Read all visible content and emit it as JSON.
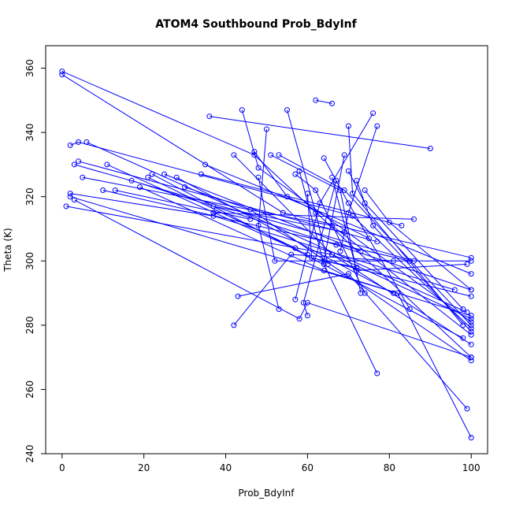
{
  "chart_data": {
    "type": "line",
    "title": "ATOM4 Southbound Prob_BdyInf",
    "xlabel": "Prob_BdyInf",
    "ylabel": "Theta (K)",
    "xlim": [
      -4,
      104
    ],
    "ylim": [
      240,
      367
    ],
    "xticks": [
      0,
      20,
      40,
      60,
      80,
      100
    ],
    "yticks": [
      240,
      260,
      280,
      300,
      320,
      340,
      360
    ],
    "grid": false,
    "legend": "none",
    "series_color": "#0000ff",
    "marker": "open-circle",
    "note": "",
    "series": [
      {
        "points": [
          [
            0,
            358
          ],
          [
            54,
            315
          ],
          [
            100,
            301
          ]
        ]
      },
      {
        "points": [
          [
            0,
            359
          ],
          [
            47,
            333
          ],
          [
            100,
            270
          ]
        ]
      },
      {
        "points": [
          [
            2,
            336
          ],
          [
            4,
            337
          ],
          [
            71,
            314
          ],
          [
            100,
            279
          ]
        ]
      },
      {
        "points": [
          [
            3,
            330
          ],
          [
            86,
            300
          ]
        ]
      },
      {
        "points": [
          [
            4,
            331
          ],
          [
            77,
            306
          ]
        ]
      },
      {
        "points": [
          [
            6,
            337
          ],
          [
            99,
            284
          ]
        ]
      },
      {
        "points": [
          [
            2,
            321
          ],
          [
            37,
            314
          ],
          [
            96,
            291
          ]
        ]
      },
      {
        "points": [
          [
            1,
            317
          ],
          [
            66,
            302
          ],
          [
            100,
            274
          ]
        ]
      },
      {
        "points": [
          [
            3,
            319
          ],
          [
            58,
            282
          ],
          [
            60,
            287
          ],
          [
            100,
            270
          ]
        ]
      },
      {
        "points": [
          [
            5,
            326
          ],
          [
            66,
            311
          ],
          [
            100,
            277
          ]
        ]
      },
      {
        "points": [
          [
            2,
            320
          ],
          [
            82,
            290
          ],
          [
            100,
            245
          ]
        ]
      },
      {
        "points": [
          [
            10,
            322
          ],
          [
            85,
            300
          ]
        ]
      },
      {
        "points": [
          [
            11,
            330
          ],
          [
            60,
            302
          ]
        ]
      },
      {
        "points": [
          [
            13,
            322
          ],
          [
            46,
            313
          ]
        ]
      },
      {
        "points": [
          [
            17,
            325
          ],
          [
            67,
            305
          ],
          [
            100,
            291
          ]
        ]
      },
      {
        "points": [
          [
            19,
            323
          ],
          [
            64,
            297
          ],
          [
            100,
            283
          ]
        ]
      },
      {
        "points": [
          [
            21,
            326
          ],
          [
            57,
            304
          ]
        ]
      },
      {
        "points": [
          [
            22,
            327
          ],
          [
            98,
            276
          ]
        ]
      },
      {
        "points": [
          [
            25,
            327
          ],
          [
            73,
            303
          ]
        ]
      },
      {
        "points": [
          [
            28,
            326
          ],
          [
            81,
            290
          ]
        ]
      },
      {
        "points": [
          [
            30,
            323
          ],
          [
            46,
            316
          ],
          [
            100,
            269
          ]
        ]
      },
      {
        "points": [
          [
            34,
            327
          ],
          [
            83,
            311
          ]
        ]
      },
      {
        "points": [
          [
            35,
            330
          ],
          [
            100,
            296
          ]
        ]
      },
      {
        "points": [
          [
            36,
            345
          ],
          [
            90,
            335
          ]
        ]
      },
      {
        "points": [
          [
            37,
            317
          ],
          [
            69,
            309
          ]
        ]
      },
      {
        "points": [
          [
            37,
            315
          ],
          [
            86,
            313
          ]
        ]
      },
      {
        "points": [
          [
            42,
            333
          ],
          [
            66,
            302
          ],
          [
            100,
            282
          ]
        ]
      },
      {
        "points": [
          [
            42,
            280
          ],
          [
            56,
            302
          ],
          [
            81,
            300
          ]
        ]
      },
      {
        "points": [
          [
            43,
            289
          ],
          [
            70,
            296
          ],
          [
            99,
            254
          ]
        ]
      },
      {
        "points": [
          [
            44,
            347
          ],
          [
            48,
            329
          ],
          [
            100,
            281
          ]
        ]
      },
      {
        "points": [
          [
            47,
            334
          ],
          [
            55,
            320
          ],
          [
            75,
            307
          ]
        ]
      },
      {
        "points": [
          [
            48,
            326
          ],
          [
            52,
            300
          ],
          [
            100,
            300
          ]
        ]
      },
      {
        "points": [
          [
            50,
            341
          ],
          [
            48,
            311
          ],
          [
            53,
            285
          ]
        ]
      },
      {
        "points": [
          [
            51,
            333
          ],
          [
            68,
            322
          ],
          [
            73,
            290
          ]
        ]
      },
      {
        "points": [
          [
            53,
            333
          ],
          [
            69,
            322
          ],
          [
            100,
            280
          ]
        ]
      },
      {
        "points": [
          [
            55,
            347
          ],
          [
            62,
            315
          ],
          [
            65,
            299
          ]
        ]
      },
      {
        "points": [
          [
            57,
            327
          ],
          [
            62,
            322
          ],
          [
            74,
            290
          ]
        ]
      },
      {
        "points": [
          [
            58,
            328
          ],
          [
            64,
            299
          ],
          [
            77,
            265
          ]
        ]
      },
      {
        "points": [
          [
            60,
            321
          ],
          [
            61,
            301
          ],
          [
            100,
            289
          ]
        ]
      },
      {
        "points": [
          [
            62,
            350
          ],
          [
            66,
            349
          ]
        ]
      },
      {
        "points": [
          [
            64,
            332
          ],
          [
            70,
            318
          ],
          [
            85,
            285
          ]
        ]
      },
      {
        "points": [
          [
            66,
            326
          ],
          [
            72,
            297
          ],
          [
            99,
            299
          ]
        ]
      },
      {
        "points": [
          [
            67,
            325
          ],
          [
            59,
            287
          ],
          [
            60,
            283
          ]
        ]
      },
      {
        "points": [
          [
            69,
            333
          ],
          [
            64,
            300
          ],
          [
            72,
            298
          ]
        ]
      },
      {
        "points": [
          [
            70,
            342
          ],
          [
            71,
            321
          ],
          [
            98,
            280
          ]
        ]
      },
      {
        "points": [
          [
            70,
            328
          ],
          [
            74,
            318
          ],
          [
            98,
            285
          ]
        ]
      },
      {
        "points": [
          [
            72,
            325
          ],
          [
            76,
            311
          ],
          [
            100,
            278
          ]
        ]
      },
      {
        "points": [
          [
            74,
            322
          ],
          [
            80,
            312
          ],
          [
            100,
            291
          ]
        ]
      },
      {
        "points": [
          [
            76,
            346
          ],
          [
            63,
            318
          ],
          [
            57,
            288
          ]
        ]
      },
      {
        "points": [
          [
            77,
            342
          ],
          [
            70,
            315
          ],
          [
            68,
            303
          ]
        ]
      }
    ]
  }
}
